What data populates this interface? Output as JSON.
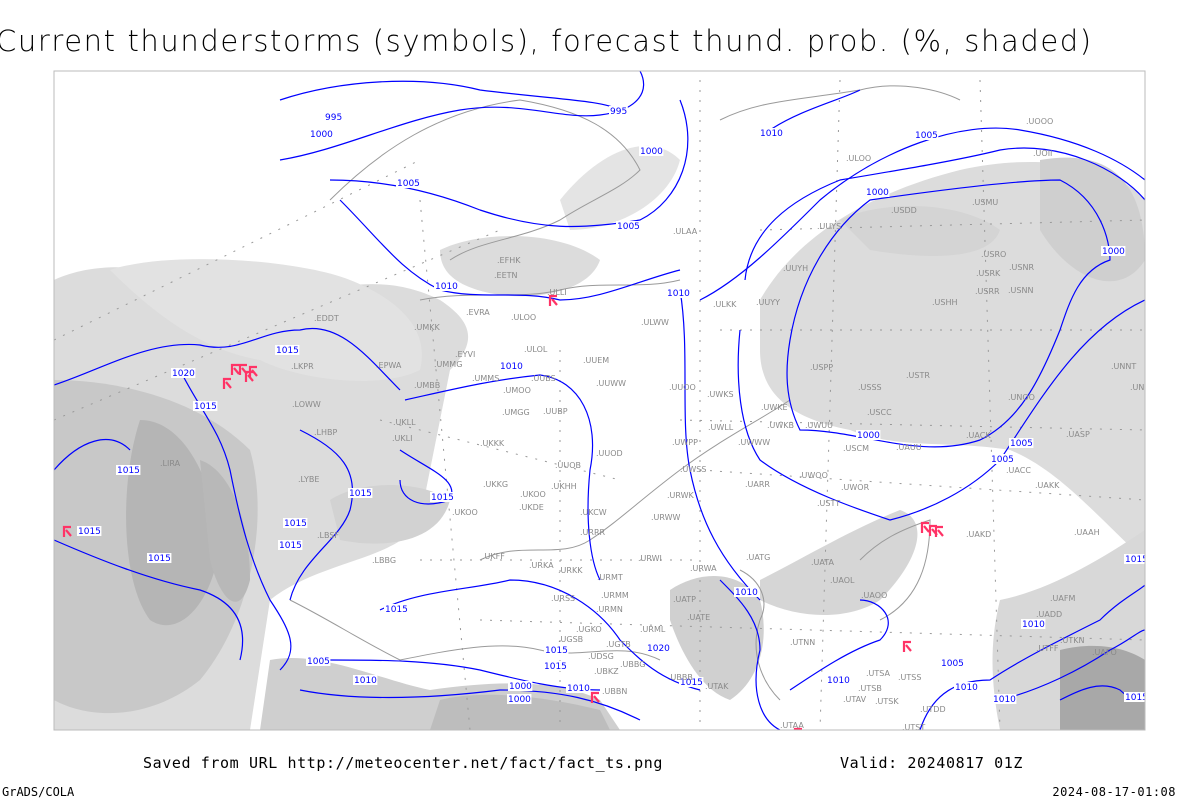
{
  "title": "Current thunderstorms (symbols), forecast thund. prob. (%, shaded)",
  "footer": {
    "saved_from": "Saved from URL http://meteocenter.net/fact/fact_ts.png",
    "valid": "Valid: 20240817 01Z",
    "software": "GrADS/COLA",
    "generated": "2024-08-17-01:08"
  },
  "colors": {
    "isobar": "#0000ff",
    "thunderstorm_symbol": "#ff3366",
    "probability_shading": "#c8c8c8",
    "coastline": "#999999"
  },
  "legend_meaning": {
    "symbols": "current thunderstorms",
    "shaded": "forecast thunderstorm probability (%)",
    "contours": "isobars"
  },
  "stations": [
    "EDDT",
    "UMKK",
    "LKPR",
    "EPWA",
    "EYVI",
    "UMMG",
    "UMBB",
    "LOWW",
    "LHBP",
    "UKLL",
    "UKLI",
    "LIRA",
    "LYBE",
    "LBSF",
    "LBBG",
    "ULOL",
    "UUEM",
    "UMMS",
    "UUBS",
    "UMOO",
    "UUWW",
    "UUOO",
    "UWKS",
    "UMGG",
    "UUBP",
    "UKKK",
    "UUOD",
    "UUOB",
    "UWPP",
    "UWKE",
    "UWKB",
    "UWLL",
    "UWUU",
    "UWWW",
    "UKKG",
    "UKOO",
    "UKHH",
    "UKDE",
    "UKOO",
    "UKCW",
    "UWSS",
    "URWK",
    "URWW",
    "URRR",
    "UARR",
    "UKFF",
    "URKA",
    "URKK",
    "URWI",
    "URWA",
    "UATG",
    "URMT",
    "URMM",
    "URSS",
    "URMN",
    "UGKO",
    "UGSB",
    "UGTB",
    "UDSG",
    "UBBG",
    "UBKZ",
    "UBBN",
    "UBBB",
    "URML",
    "UATP",
    "UATE",
    "UTAK",
    "UATA",
    "UAOL",
    "UAOO",
    "UTNN",
    "UTSA",
    "UTSS",
    "UTSB",
    "UTAV",
    "UTSK",
    "UTST",
    "UTAA",
    "UTDD",
    "UAKK",
    "UACC",
    "UACK",
    "UASP",
    "UNOO",
    "USTR",
    "USSS",
    "USCC",
    "USCM",
    "UAUU",
    "UWOO",
    "UWOR",
    "USTT",
    "USPP",
    "UUYY",
    "ULKK",
    "UUYS",
    "UUYH",
    "ULAA",
    "ULOO",
    "USDD",
    "USMU",
    "USRO",
    "USNR",
    "USRK",
    "USRR",
    "USNN",
    "USHH",
    "UOII",
    "UOOO",
    "UNNT",
    "UNBB",
    "EFHK",
    "EETN",
    "EVRA",
    "ULOO",
    "ULLI",
    "ULWW",
    "UAAH",
    "UAKD",
    "UADD",
    "UAFM",
    "UTFF",
    "UTKN",
    "UAFO"
  ],
  "isobar_labels": [
    "995",
    "1000",
    "995",
    "1000",
    "1005",
    "1010",
    "1005",
    "1005",
    "1010",
    "1000",
    "1000",
    "1000",
    "1015",
    "1020",
    "1015",
    "1015",
    "1015",
    "1015",
    "1015",
    "1015",
    "1015",
    "1015",
    "1015",
    "1010",
    "1010",
    "1005",
    "1010",
    "1015",
    "1020",
    "1015",
    "1005",
    "1010",
    "1000",
    "1010",
    "1010",
    "1005",
    "1010",
    "1010",
    "1015",
    "1015",
    "1000",
    "1005",
    "1010",
    "1015"
  ],
  "thunderstorm_count": 13
}
